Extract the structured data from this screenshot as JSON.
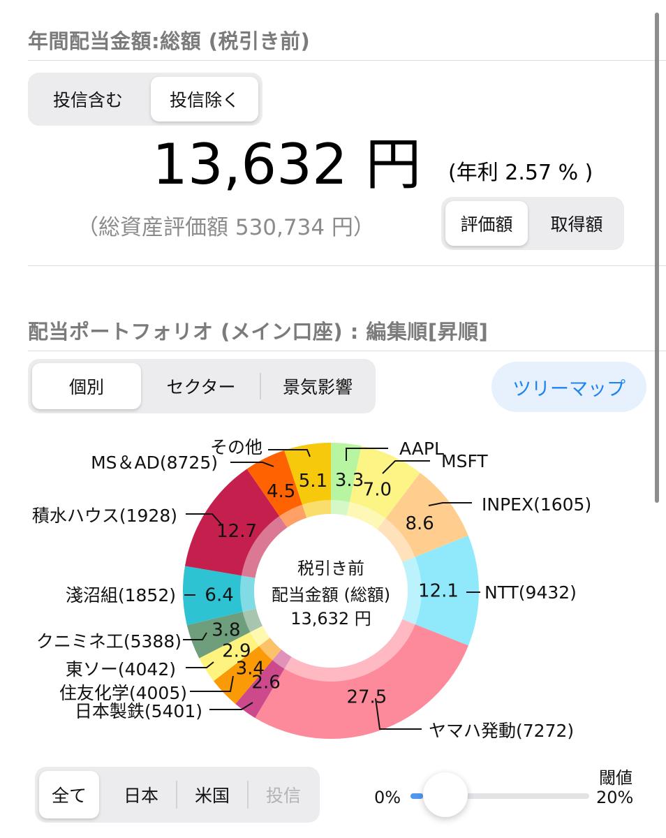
{
  "dividend_section": {
    "title": "年間配当金額:総額 (税引き前)",
    "fund_toggle": {
      "options": [
        "投信含む",
        "投信除く"
      ],
      "selected": 1
    },
    "total_amount": "13,632 円",
    "annual_yield": "(年利 2.57 % )",
    "total_assets": "（総資産評価額 530,734 円）",
    "basis_toggle": {
      "options": [
        "評価額",
        "取得額"
      ],
      "selected": 0
    }
  },
  "portfolio_section": {
    "title": "配当ポートフォリオ (メイン口座) : 編集順[昇順]",
    "view_tabs": {
      "options": [
        "個別",
        "セクター",
        "景気影響"
      ],
      "selected": 0
    },
    "treemap_button": "ツリーマップ"
  },
  "chart_data": {
    "type": "pie",
    "center_label": [
      "税引き前",
      "配当金額 (総額)",
      "13,632 円"
    ],
    "slices": [
      {
        "name": "AAPL",
        "value": 3.3,
        "color": "#b8f5a0"
      },
      {
        "name": "MSFT",
        "value": 7.0,
        "color": "#fdf486"
      },
      {
        "name": "INPEX(1605)",
        "value": 8.6,
        "color": "#ffce8f"
      },
      {
        "name": "NTT(9432)",
        "value": 12.1,
        "color": "#8fe9fb"
      },
      {
        "name": "ヤマハ発動(7272)",
        "value": 27.5,
        "color": "#fd8a9a"
      },
      {
        "name": "日本製鉄(5401)",
        "value": 2.6,
        "color": "#cc4a8b"
      },
      {
        "name": "住友化学(4005)",
        "value": 3.4,
        "color": "#fb9a07"
      },
      {
        "name": "東ソー(4042)",
        "value": 2.9,
        "color": "#fdf37e"
      },
      {
        "name": "クニミネ工(5388)",
        "value": 3.8,
        "color": "#6e9e7b"
      },
      {
        "name": "淺沼組(1852)",
        "value": 6.4,
        "color": "#2ec3d3"
      },
      {
        "name": "積水ハウス(1928)",
        "value": 12.7,
        "color": "#c41f4d"
      },
      {
        "name": "MS＆AD(8725)",
        "value": 4.5,
        "color": "#ff6200"
      },
      {
        "name": "その他",
        "value": 5.1,
        "color": "#f7c90c"
      }
    ]
  },
  "filter_section": {
    "region_tabs": {
      "options": [
        "全て",
        "日本",
        "米国",
        "投信"
      ],
      "selected": 0,
      "disabled": [
        3
      ]
    },
    "threshold": {
      "label": "閾値",
      "min_label": "0%",
      "max_label": "20%",
      "value": 0
    }
  }
}
